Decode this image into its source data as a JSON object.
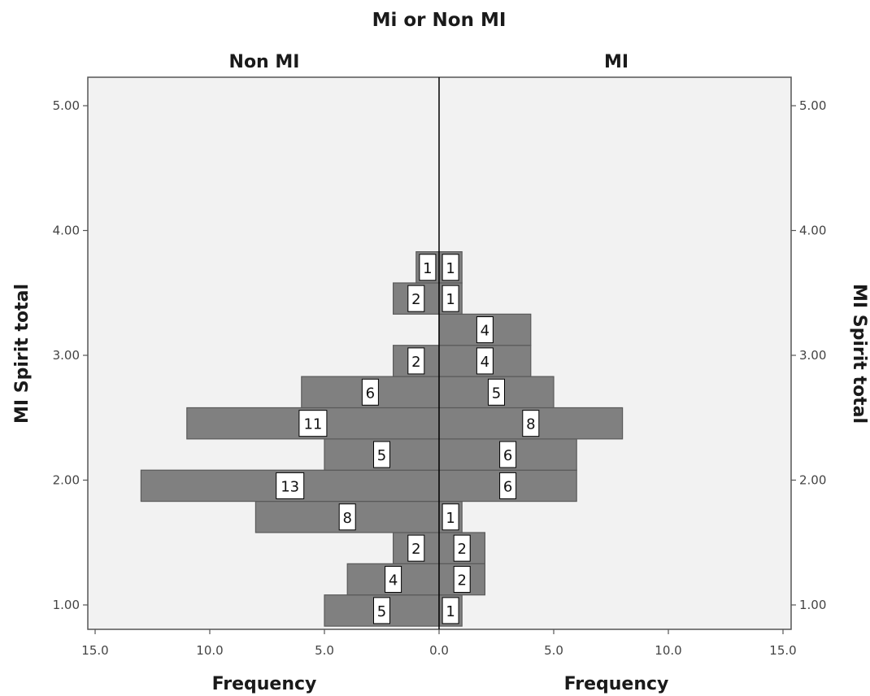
{
  "chart_data": {
    "type": "bar",
    "orientation": "horizontal",
    "layout": "population-pyramid",
    "title": "Mi or Non MI",
    "panels": [
      "Non MI",
      "MI"
    ],
    "ylabel": "MI Spirit total",
    "xlabel": "Frequency",
    "ylim": [
      0.83,
      5.25
    ],
    "xlim": [
      0,
      15
    ],
    "bin_width": 0.25,
    "y_ticks": [
      "1.00",
      "2.00",
      "3.00",
      "4.00",
      "5.00"
    ],
    "x_ticks_left": [
      "15.0",
      "10.0",
      "5.0",
      "0.0"
    ],
    "x_ticks_right": [
      "5.0",
      "10.0",
      "15.0"
    ],
    "bins": [
      1.0,
      1.25,
      1.5,
      1.75,
      2.0,
      2.25,
      2.5,
      2.75,
      3.0,
      3.25,
      3.5,
      3.75,
      4.0,
      4.25,
      4.5,
      4.75
    ],
    "series": [
      {
        "name": "Non MI",
        "values": [
          5,
          4,
          2,
          8,
          13,
          5,
          11,
          6,
          2,
          null,
          2,
          1,
          null,
          null,
          null,
          null
        ]
      },
      {
        "name": "MI",
        "values": [
          1,
          2,
          2,
          1,
          6,
          6,
          8,
          5,
          4,
          4,
          1,
          1,
          null,
          null,
          null,
          null
        ]
      }
    ],
    "bin_bottoms": [
      0.83,
      1.08,
      1.33,
      1.58,
      1.83,
      2.08,
      2.33,
      2.58,
      2.83,
      3.08,
      3.33,
      3.58,
      3.83,
      4.08,
      4.33,
      4.58
    ],
    "grid": false,
    "legend": "none",
    "colors": {
      "bar": "#808080",
      "bar_stroke": "#5a5a5a",
      "plot_bg": "#f2f2f2",
      "label_bg": "#ffffff"
    }
  }
}
